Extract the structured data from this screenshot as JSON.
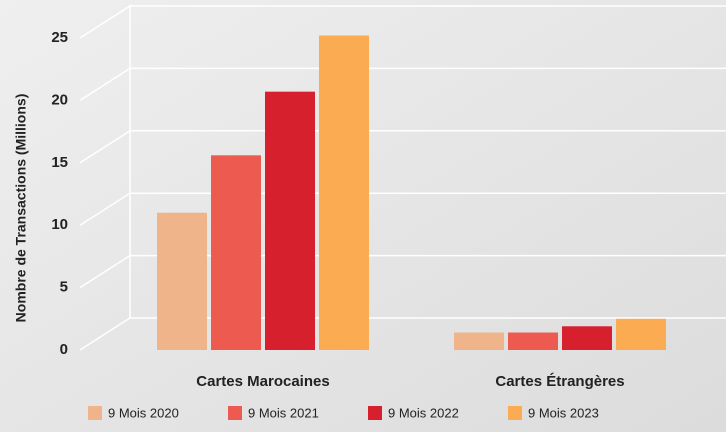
{
  "chart_data": {
    "type": "bar",
    "y_label": "Nombre de Transactions (Millions)",
    "categories": [
      "Cartes Marocaines",
      "Cartes Étrangères"
    ],
    "series": [
      {
        "name": "9 Mois 2020",
        "color": "#f0b48a",
        "values": [
          11,
          1.4
        ]
      },
      {
        "name": "9 Mois 2021",
        "color": "#ed5a50",
        "values": [
          15.6,
          1.4
        ]
      },
      {
        "name": "9 Mois 2022",
        "color": "#d7202e",
        "values": [
          20.7,
          1.9
        ]
      },
      {
        "name": "9 Mois 2023",
        "color": "#fbab52",
        "values": [
          25.2,
          2.5
        ]
      }
    ],
    "ylim": [
      0,
      25
    ],
    "yticks": [
      0,
      5,
      10,
      15,
      20,
      25
    ],
    "grid": true,
    "legend": "bottom"
  }
}
